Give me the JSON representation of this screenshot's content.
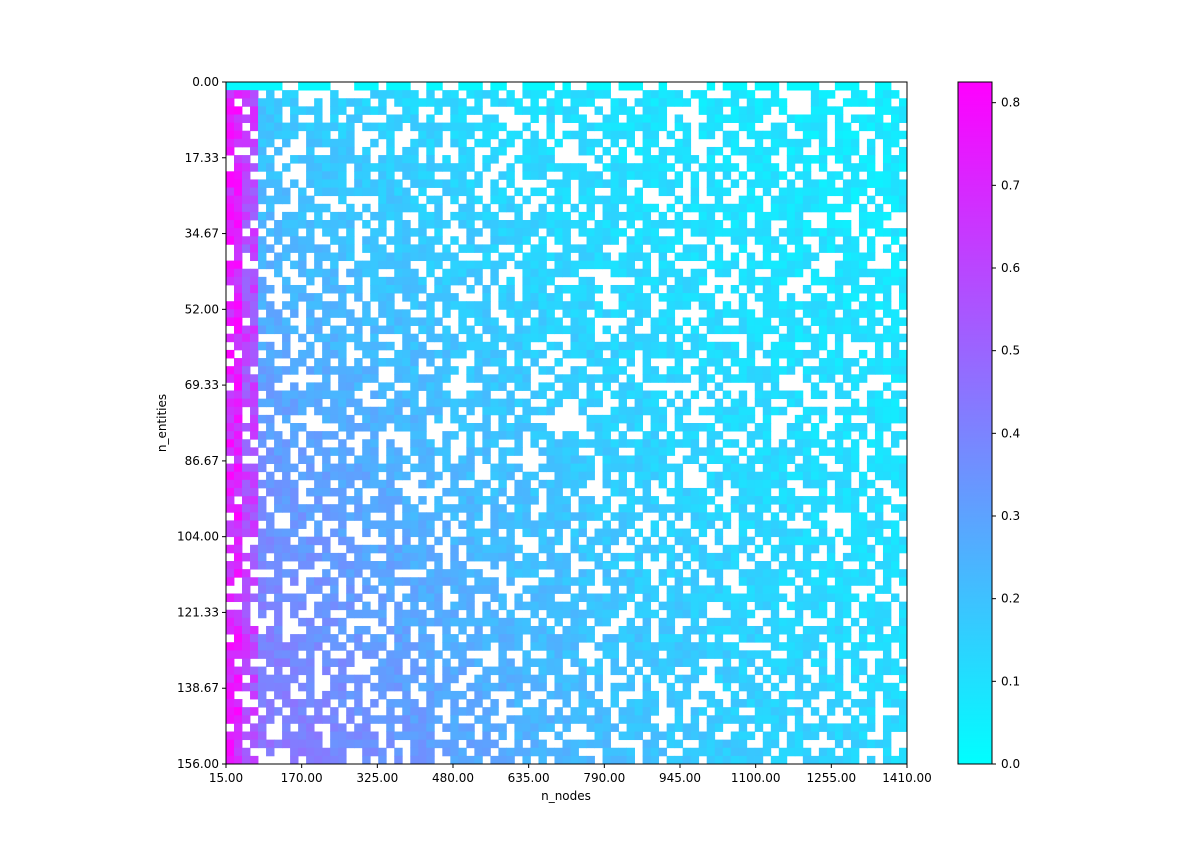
{
  "chart_data": {
    "type": "heatmap",
    "title": "",
    "xlabel": "n_nodes",
    "ylabel": "n_entities",
    "x_ticks": [
      "15.00",
      "170.00",
      "325.00",
      "480.00",
      "635.00",
      "790.00",
      "945.00",
      "1100.00",
      "1255.00",
      "1410.00"
    ],
    "y_ticks": [
      "0.00",
      "17.33",
      "34.67",
      "52.00",
      "69.33",
      "86.67",
      "104.00",
      "121.33",
      "138.67",
      "156.00"
    ],
    "xlim": [
      15,
      1410
    ],
    "ylim": [
      0,
      156
    ],
    "n_cols": 85,
    "n_rows": 84,
    "colormap": {
      "name": "cool",
      "low": "#00ffff",
      "high": "#ff00ff"
    },
    "colorbar": {
      "range": [
        0,
        0.825
      ],
      "ticks": [
        "0.0",
        "0.1",
        "0.2",
        "0.3",
        "0.4",
        "0.5",
        "0.6",
        "0.7",
        "0.8"
      ]
    },
    "missing_cells": "white",
    "value_model": "values decrease with n_nodes and increase with n_entities; ~0.7-0.8 in leftmost columns, ~0.0-0.1 at high n_nodes / low n_entities"
  }
}
